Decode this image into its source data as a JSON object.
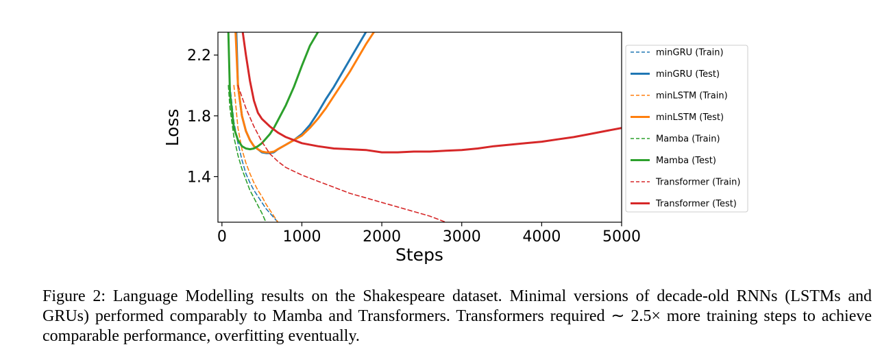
{
  "caption": "Figure 2: Language Modelling results on the Shakespeare dataset. Minimal versions of decade-old RNNs (LSTMs and GRUs) performed comparably to Mamba and Transformers. Transformers required ∼ 2.5× more training steps to achieve comparable performance, overfitting eventually.",
  "chart_data": {
    "type": "line",
    "title": "",
    "xlabel": "Steps",
    "ylabel": "Loss",
    "xlim": [
      -50,
      5000
    ],
    "ylim": [
      1.1,
      2.35
    ],
    "xticks": [
      0,
      1000,
      2000,
      3000,
      4000,
      5000
    ],
    "xtick_labels": [
      "0",
      "1000",
      "2000",
      "3000",
      "4000",
      "5000"
    ],
    "yticks": [
      1.4,
      1.8,
      2.2
    ],
    "ytick_labels": [
      "1.4",
      "1.8",
      "2.2"
    ],
    "grid": false,
    "legend": "outside-right",
    "series": [
      {
        "name": "minGRU (Train)",
        "color": "#1f77b4",
        "style": "dashed",
        "x": [
          100,
          150,
          200,
          250,
          300,
          350,
          400,
          450,
          500,
          550,
          600,
          650,
          700
        ],
        "y": [
          2.0,
          1.76,
          1.62,
          1.51,
          1.42,
          1.36,
          1.31,
          1.27,
          1.23,
          1.19,
          1.16,
          1.13,
          1.1
        ]
      },
      {
        "name": "minGRU (Test)",
        "color": "#1f77b4",
        "style": "solid",
        "x": [
          180,
          200,
          250,
          300,
          350,
          400,
          450,
          500,
          550,
          600,
          650,
          700,
          800,
          900,
          1000,
          1100,
          1200,
          1300,
          1400,
          1500,
          1600,
          1700,
          1800
        ],
        "y": [
          2.35,
          2.0,
          1.8,
          1.7,
          1.64,
          1.6,
          1.58,
          1.56,
          1.555,
          1.555,
          1.56,
          1.58,
          1.61,
          1.64,
          1.68,
          1.74,
          1.82,
          1.91,
          1.99,
          2.08,
          2.17,
          2.26,
          2.35
        ]
      },
      {
        "name": "minLSTM (Train)",
        "color": "#ff7f0e",
        "style": "dashed",
        "x": [
          150,
          200,
          250,
          300,
          350,
          400,
          450,
          500,
          550,
          600,
          650,
          700
        ],
        "y": [
          2.0,
          1.72,
          1.58,
          1.49,
          1.42,
          1.36,
          1.31,
          1.27,
          1.22,
          1.18,
          1.14,
          1.1
        ]
      },
      {
        "name": "minLSTM (Test)",
        "color": "#ff7f0e",
        "style": "solid",
        "x": [
          170,
          200,
          250,
          300,
          350,
          400,
          450,
          500,
          550,
          600,
          650,
          700,
          800,
          900,
          1000,
          1100,
          1200,
          1300,
          1400,
          1500,
          1600,
          1700,
          1800,
          1900
        ],
        "y": [
          2.35,
          2.0,
          1.8,
          1.7,
          1.64,
          1.6,
          1.58,
          1.565,
          1.56,
          1.56,
          1.565,
          1.58,
          1.61,
          1.64,
          1.67,
          1.72,
          1.78,
          1.85,
          1.93,
          2.01,
          2.09,
          2.18,
          2.27,
          2.35
        ]
      },
      {
        "name": "Mamba (Train)",
        "color": "#2ca02c",
        "style": "dashed",
        "x": [
          80,
          100,
          150,
          200,
          250,
          300,
          350,
          400,
          450,
          500,
          550
        ],
        "y": [
          2.0,
          1.85,
          1.66,
          1.54,
          1.45,
          1.38,
          1.31,
          1.26,
          1.21,
          1.16,
          1.1
        ]
      },
      {
        "name": "Mamba (Test)",
        "color": "#2ca02c",
        "style": "solid",
        "x": [
          80,
          100,
          150,
          200,
          250,
          300,
          350,
          400,
          450,
          500,
          550,
          600,
          650,
          700,
          800,
          900,
          1000,
          1100,
          1200
        ],
        "y": [
          2.35,
          1.95,
          1.72,
          1.64,
          1.6,
          1.585,
          1.58,
          1.585,
          1.6,
          1.62,
          1.65,
          1.68,
          1.72,
          1.77,
          1.87,
          1.99,
          2.13,
          2.26,
          2.35
        ]
      },
      {
        "name": "Transformer (Train)",
        "color": "#d62728",
        "style": "dashed",
        "x": [
          200,
          300,
          400,
          500,
          600,
          700,
          800,
          1000,
          1200,
          1400,
          1600,
          1800,
          2000,
          2200,
          2400,
          2600,
          2800
        ],
        "y": [
          2.0,
          1.85,
          1.73,
          1.63,
          1.55,
          1.5,
          1.46,
          1.41,
          1.37,
          1.33,
          1.29,
          1.26,
          1.23,
          1.2,
          1.17,
          1.14,
          1.1
        ]
      },
      {
        "name": "Transformer (Test)",
        "color": "#d62728",
        "style": "solid",
        "x": [
          260,
          300,
          350,
          400,
          450,
          500,
          600,
          700,
          800,
          900,
          1000,
          1200,
          1400,
          1600,
          1800,
          2000,
          2200,
          2400,
          2600,
          2800,
          3000,
          3200,
          3400,
          3600,
          3800,
          4000,
          4200,
          4400,
          4600,
          4800,
          5000
        ],
        "y": [
          2.35,
          2.2,
          2.03,
          1.9,
          1.82,
          1.78,
          1.73,
          1.69,
          1.66,
          1.64,
          1.62,
          1.6,
          1.585,
          1.58,
          1.575,
          1.56,
          1.56,
          1.565,
          1.565,
          1.57,
          1.575,
          1.585,
          1.6,
          1.61,
          1.62,
          1.63,
          1.645,
          1.66,
          1.68,
          1.7,
          1.72
        ]
      }
    ]
  }
}
